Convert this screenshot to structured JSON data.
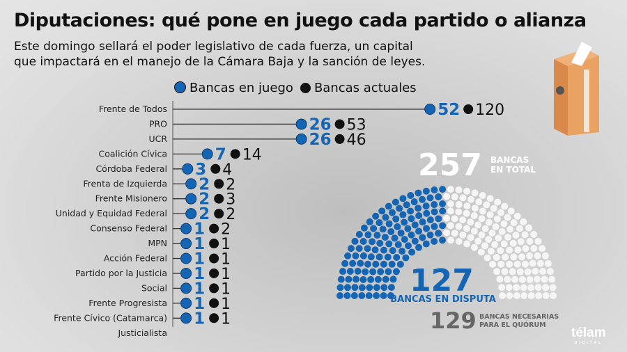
{
  "header": {
    "title": "Diputaciones: qué pone en juego cada partido o alianza",
    "subtitle_line1": "Este domingo sellará el poder legislativo de cada fuerza, un capital",
    "subtitle_line2": "que impactará en el manejo de la Cámara Baja y la sanción de leyes."
  },
  "colors": {
    "blue": "#1565b5",
    "black": "#111111",
    "gray_number": "#666666"
  },
  "chart_data": {
    "type": "lollipop",
    "legend": [
      "Bancas en juego",
      "Bancas actuales"
    ],
    "categories": [
      "Frente de Todos",
      "PRO",
      "UCR",
      "Coalición Cívica",
      "Córdoba Federal",
      "Frenta de Izquierda",
      "Frente Misionero",
      "Unidad y Equidad Federal",
      "Consenso Federal",
      "MPN",
      "Acción Federal",
      "Partido por la Justicia",
      "Social",
      "Frente Progresista",
      "Frente Cívico (Catamarca)",
      "Justicialista"
    ],
    "series": [
      {
        "name": "Bancas en juego",
        "values": [
          52,
          26,
          26,
          7,
          3,
          2,
          2,
          2,
          1,
          1,
          1,
          1,
          1,
          1,
          1,
          null
        ]
      },
      {
        "name": "Bancas actuales",
        "values": [
          120,
          53,
          46,
          14,
          4,
          2,
          3,
          2,
          2,
          1,
          1,
          1,
          1,
          1,
          1,
          null
        ]
      }
    ]
  },
  "hemicycle": {
    "total": 257,
    "total_label_1": "BANCAS",
    "total_label_2": "EN TOTAL",
    "disputed": 127,
    "disputed_label": "BANCAS EN DISPUTA",
    "quorum": 129,
    "quorum_label_1": "BANCAS NECESARIAS",
    "quorum_label_2": "PARA EL QUÓRUM"
  },
  "logo": {
    "name": "télam",
    "sub": "DIGITAL"
  },
  "icons": {
    "ballot": "ballot-box-icon"
  }
}
